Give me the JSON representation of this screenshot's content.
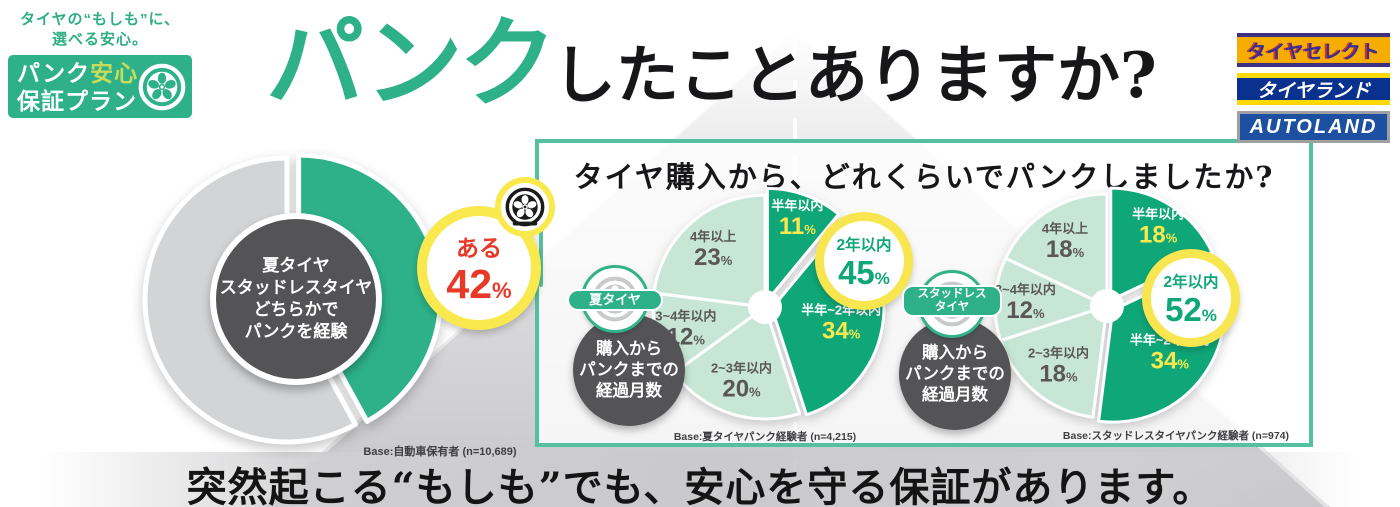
{
  "colors": {
    "brand_green": "#2EB189",
    "pie_dark_green": "#0FA778",
    "pie_light_green": "#C8E6D6",
    "donut_gray": "#D3D4D6",
    "highlight_yellow": "#F9E94E",
    "alert_red": "#E73828",
    "dark_circle_gray": "#545456",
    "panel_border_green": "#55C09D",
    "slice_text_gray": "#595757"
  },
  "brand": {
    "tagline_lines": [
      "タイヤの“もしも”に、",
      "選べる安心。"
    ],
    "logo_line1_part1": "パンク",
    "logo_line1_part2": "安心",
    "logo_line2": "保証プラン"
  },
  "title": {
    "highlight": "パンク",
    "rest": "したことありますか?"
  },
  "partners": [
    {
      "label": "タイヤセレクト"
    },
    {
      "label": "タイヤランド"
    },
    {
      "label": "AUTOLAND"
    }
  ],
  "panel": {
    "question": "タイヤ購入から、どれくらいでパンクしましたか?"
  },
  "footer": {
    "message": "突然起こる“もしも”でも、安心を守る保証があります。"
  },
  "chart_data": [
    {
      "id": "puncture-experience-donut",
      "type": "pie",
      "variant": "donut",
      "slices": [
        {
          "label": "ある",
          "value": 42,
          "emphasized": true
        },
        {
          "label": "",
          "value": 58,
          "emphasized": false
        }
      ],
      "center_label_lines": [
        "夏タイヤ",
        "スタッドレスタイヤ",
        "どちらかで",
        "パンクを経験"
      ],
      "callout": {
        "label": "ある",
        "value": "42",
        "unit": "%"
      },
      "base_note": "Base:自動車保有者 (n=10,689)"
    },
    {
      "id": "summer-tire-months-to-puncture",
      "type": "pie",
      "tire_badge_lines": [
        "夏タイヤ"
      ],
      "measure_label_lines": [
        "購入から",
        "パンクまでの",
        "経過月数"
      ],
      "slices": [
        {
          "label": "半年以内",
          "value": 11,
          "emphasized": true
        },
        {
          "label": "半年~2年以内",
          "value": 34,
          "emphasized": true
        },
        {
          "label": "2~3年以内",
          "value": 20,
          "emphasized": false
        },
        {
          "label": "3~4年以内",
          "value": 12,
          "emphasized": false
        },
        {
          "label": "4年以上",
          "value": 23,
          "emphasized": false
        }
      ],
      "callout": {
        "label": "2年以内",
        "value": "45",
        "unit": "%"
      },
      "base_note": "Base:夏タイヤパンク経験者 (n=4,215)"
    },
    {
      "id": "studless-tire-months-to-puncture",
      "type": "pie",
      "tire_badge_lines": [
        "スタッドレス",
        "タイヤ"
      ],
      "measure_label_lines": [
        "購入から",
        "パンクまでの",
        "経過月数"
      ],
      "slices": [
        {
          "label": "半年以内",
          "value": 18,
          "emphasized": true
        },
        {
          "label": "半年~2年以内",
          "value": 34,
          "emphasized": true
        },
        {
          "label": "2~3年以内",
          "value": 18,
          "emphasized": false
        },
        {
          "label": "3~4年以内",
          "value": 12,
          "emphasized": false
        },
        {
          "label": "4年以上",
          "value": 18,
          "emphasized": false
        }
      ],
      "callout": {
        "label": "2年以内",
        "value": "52",
        "unit": "%"
      },
      "base_note": "Base:スタッドレスタイヤパンク経験者 (n=974)"
    }
  ]
}
